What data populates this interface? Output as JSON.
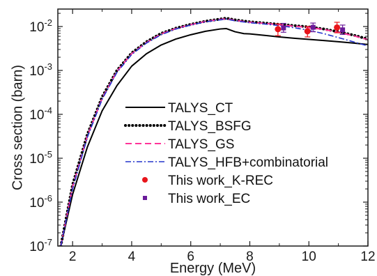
{
  "chart_data": {
    "type": "line",
    "title": "",
    "xlabel": "Energy  (MeV)",
    "ylabel": "Cross section  (barn)",
    "xlim": [
      1.5,
      12
    ],
    "ylim": [
      1e-07,
      0.025
    ],
    "y_scale": "log",
    "grid": false,
    "legend_position": "center-right",
    "x_ticks": [
      2,
      4,
      6,
      8,
      10,
      12
    ],
    "y_ticks": [
      {
        "value": 1e-07,
        "base": "10",
        "exp": "-7"
      },
      {
        "value": 1e-06,
        "base": "10",
        "exp": "-6"
      },
      {
        "value": 1e-05,
        "base": "10",
        "exp": "-5"
      },
      {
        "value": 0.0001,
        "base": "10",
        "exp": "-4"
      },
      {
        "value": 0.001,
        "base": "10",
        "exp": "-3"
      },
      {
        "value": 0.01,
        "base": "10",
        "exp": "-2"
      }
    ],
    "series": [
      {
        "name": "TALYS_CT",
        "kind": "line",
        "color": "#000000",
        "dash": "solid",
        "x": [
          1.6,
          2.0,
          2.5,
          3.0,
          3.5,
          4.0,
          4.5,
          5.0,
          5.5,
          6.0,
          6.5,
          7.0,
          7.2,
          7.5,
          7.8,
          8.0,
          8.5,
          9.0,
          9.5,
          10.0,
          10.5,
          11.0,
          11.5,
          12.0
        ],
        "y": [
          1e-07,
          1.5e-06,
          1.8e-05,
          0.00012,
          0.00045,
          0.00125,
          0.0024,
          0.0038,
          0.0052,
          0.0065,
          0.0078,
          0.0088,
          0.009,
          0.0076,
          0.0069,
          0.0068,
          0.0063,
          0.0058,
          0.0054,
          0.0051,
          0.0048,
          0.0045,
          0.0042,
          0.0039
        ]
      },
      {
        "name": "TALYS_BSFG",
        "kind": "line",
        "color": "#000000",
        "dash": "dotted",
        "x": [
          1.6,
          2.0,
          2.5,
          3.0,
          3.5,
          4.0,
          4.5,
          5.0,
          5.5,
          6.0,
          6.5,
          7.0,
          7.2,
          7.5,
          8.0,
          8.5,
          9.0,
          9.5,
          10.0,
          10.5,
          11.0,
          11.5,
          12.0
        ],
        "y": [
          1e-07,
          2.5e-06,
          3.5e-05,
          0.00025,
          0.001,
          0.0025,
          0.0045,
          0.007,
          0.0092,
          0.0112,
          0.0132,
          0.0148,
          0.0155,
          0.0142,
          0.0128,
          0.012,
          0.0112,
          0.0105,
          0.0098,
          0.0088,
          0.0076,
          0.0064,
          0.0052
        ]
      },
      {
        "name": "TALYS_GS",
        "kind": "line",
        "color": "#ff3399",
        "dash": "dashed",
        "x": [
          1.6,
          2.0,
          2.5,
          3.0,
          3.5,
          4.0,
          4.5,
          5.0,
          5.5,
          6.0,
          6.5,
          7.0,
          7.2,
          7.5,
          8.0,
          8.5,
          9.0,
          9.5,
          10.0,
          10.5,
          11.0,
          11.5,
          12.0
        ],
        "y": [
          1e-07,
          2.2e-06,
          3.2e-05,
          0.00023,
          0.00095,
          0.0024,
          0.0043,
          0.0068,
          0.009,
          0.011,
          0.013,
          0.0145,
          0.015,
          0.0138,
          0.0125,
          0.0118,
          0.011,
          0.0102,
          0.0095,
          0.0086,
          0.0074,
          0.0062,
          0.005
        ]
      },
      {
        "name": "TALYS_HFB+combinatorial",
        "kind": "line",
        "color": "#2233cc",
        "dash": "dashdot",
        "x": [
          1.6,
          2.0,
          2.5,
          3.0,
          3.5,
          4.0,
          4.5,
          5.0,
          5.5,
          6.0,
          6.5,
          7.0,
          7.2,
          7.5,
          8.0,
          8.5,
          9.0,
          9.5,
          10.0,
          10.5,
          11.0,
          11.5,
          12.0
        ],
        "y": [
          1e-07,
          2e-06,
          3e-05,
          0.00022,
          0.0009,
          0.0023,
          0.0042,
          0.0065,
          0.0088,
          0.0108,
          0.0128,
          0.0142,
          0.0148,
          0.0135,
          0.0122,
          0.0114,
          0.0105,
          0.0094,
          0.0082,
          0.0069,
          0.0056,
          0.0045,
          0.0036
        ]
      },
      {
        "name": "This work_K-REC",
        "kind": "scatter",
        "color": "#e8151b",
        "marker": "circle",
        "x": [
          9.0,
          10.0,
          11.0
        ],
        "y": [
          0.0087,
          0.0078,
          0.0095
        ],
        "err_low": [
          0.0062,
          0.0058,
          0.0072
        ],
        "err_high": [
          0.0115,
          0.01,
          0.0125
        ]
      },
      {
        "name": "This work_EC",
        "kind": "scatter",
        "color": "#6a1b9a",
        "marker": "square",
        "x": [
          9.0,
          10.0,
          11.0
        ],
        "y": [
          0.0093,
          0.0096,
          0.0084
        ],
        "err_low": [
          0.0074,
          0.0076,
          0.0066
        ],
        "err_high": [
          0.0118,
          0.012,
          0.0108
        ]
      }
    ]
  }
}
